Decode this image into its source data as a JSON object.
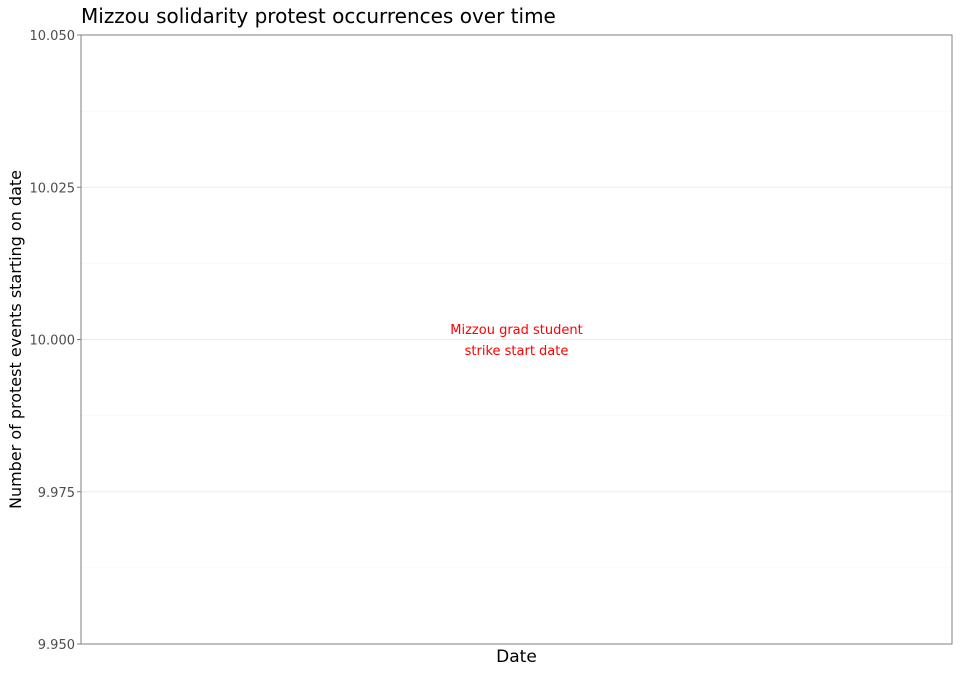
{
  "chart_data": {
    "type": "line",
    "title": "Mizzou solidarity protest occurrences over time",
    "xlabel": "Date",
    "ylabel": "Number of protest events starting on date",
    "ylim": [
      9.95,
      10.05
    ],
    "y_ticks": [
      {
        "value": 9.95,
        "label": "9.950"
      },
      {
        "value": 9.975,
        "label": "9.975"
      },
      {
        "value": 10.0,
        "label": "10.000"
      },
      {
        "value": 10.025,
        "label": "10.025"
      },
      {
        "value": 10.05,
        "label": "10.050"
      }
    ],
    "y_minor_gridlines": [
      9.9625,
      9.9875,
      10.0125,
      10.0375
    ],
    "x_ticks": [],
    "series": [],
    "grid": true,
    "annotations": [
      {
        "text_lines": [
          "Mizzou grad student",
          "strike start date"
        ],
        "y": 10.0,
        "color": "#ff0000"
      }
    ],
    "colors": {
      "annotation": "#ff0000",
      "panel_border": "#7f7f7f",
      "major_grid": "#ebebeb",
      "minor_grid": "#f4f4f4",
      "axis_text": "#4d4d4d",
      "title_text": "#000000"
    }
  }
}
